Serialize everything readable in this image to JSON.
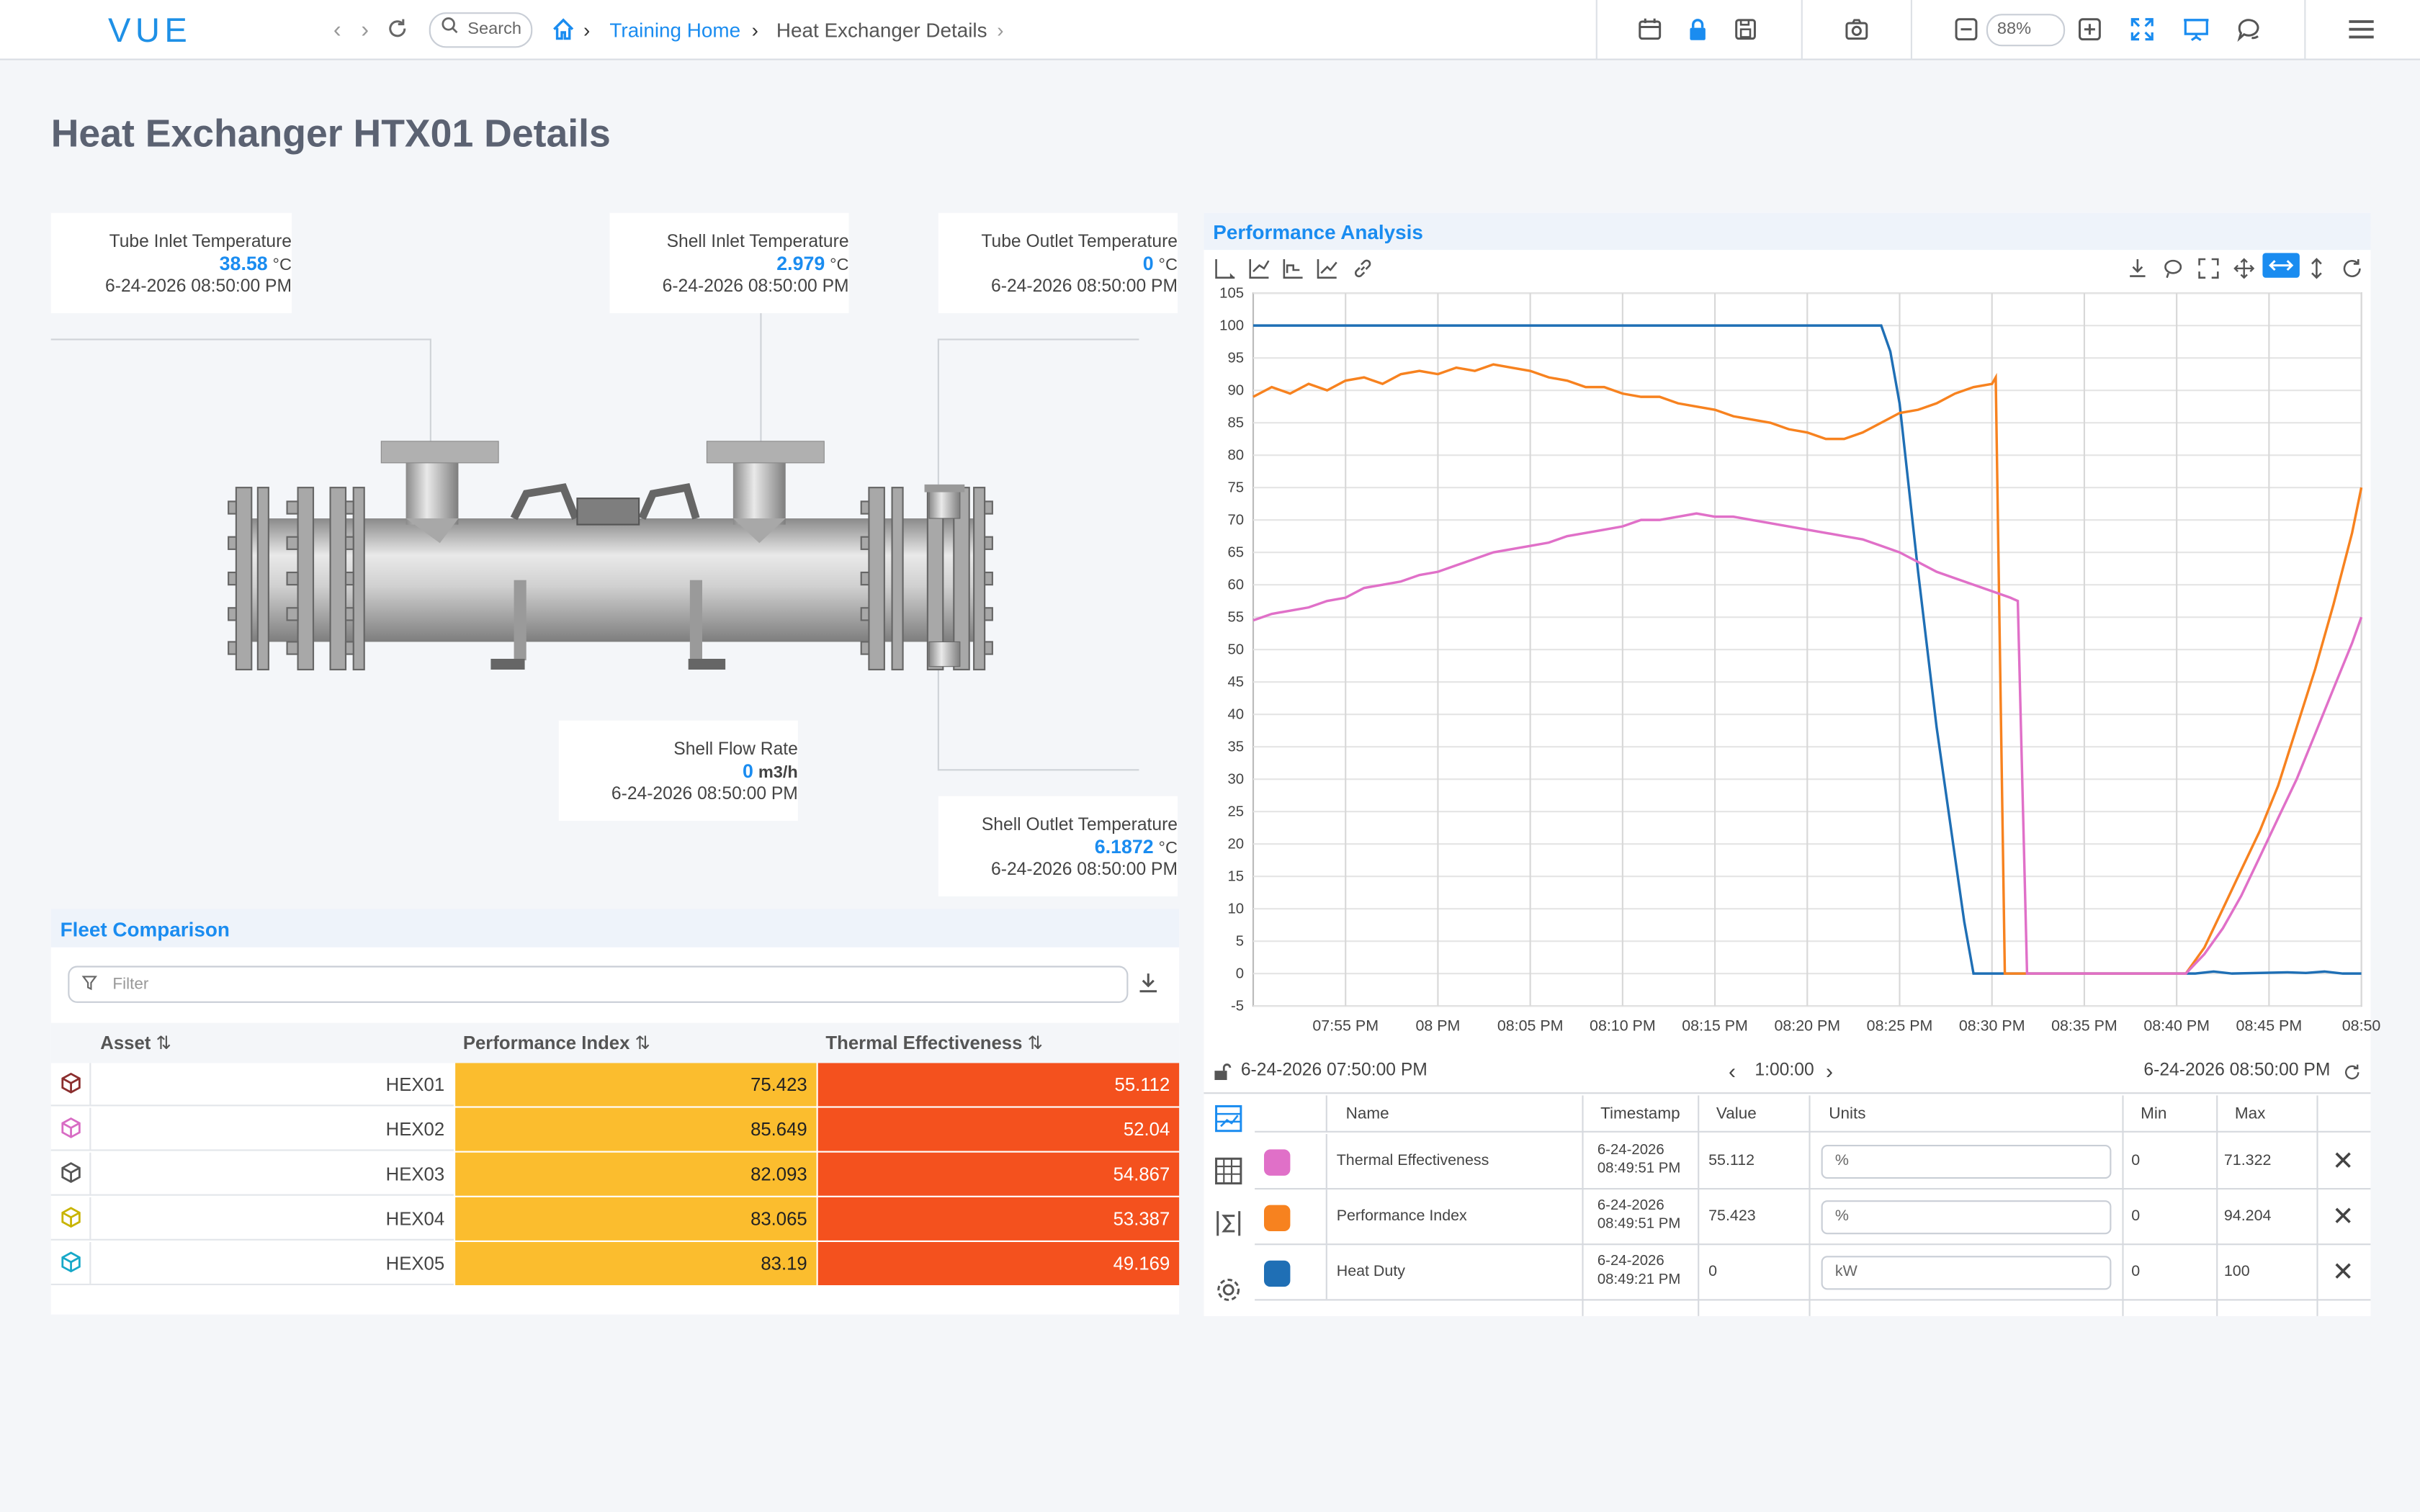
{
  "app": {
    "logo": "VUE"
  },
  "toolbar": {
    "search_placeholder": "Search",
    "breadcrumb": [
      "Training Home",
      "Heat Exchanger Details"
    ],
    "zoom": "88%"
  },
  "page": {
    "title": "Heat Exchanger HTX01 Details"
  },
  "sensors": [
    {
      "name": "Tube Inlet Temperature",
      "value": "38.58",
      "unit": "°C",
      "time": "6-24-2026 08:50:00 PM"
    },
    {
      "name": "Shell Inlet Temperature",
      "value": "2.979",
      "unit": "°C",
      "time": "6-24-2026 08:50:00 PM"
    },
    {
      "name": "Tube Outlet Temperature",
      "value": "0",
      "unit": "°C",
      "time": "6-24-2026 08:50:00 PM"
    },
    {
      "name": "Shell Flow Rate",
      "value": "0",
      "unit": "m3/h",
      "time": "6-24-2026 08:50:00 PM"
    },
    {
      "name": "Shell Outlet Temperature",
      "value": "6.1872",
      "unit": "°C",
      "time": "6-24-2026 08:50:00 PM"
    }
  ],
  "fleet": {
    "title": "Fleet Comparison",
    "filter_placeholder": "Filter",
    "columns": [
      "Asset",
      "Performance Index",
      "Thermal Effectiveness"
    ],
    "rows": [
      {
        "asset": "HEX01",
        "pi": "75.423",
        "te": "55.112",
        "icon_color": "#8b2e2e"
      },
      {
        "asset": "HEX02",
        "pi": "85.649",
        "te": "52.04",
        "icon_color": "#d86cc4"
      },
      {
        "asset": "HEX03",
        "pi": "82.093",
        "te": "54.867",
        "icon_color": "#555555"
      },
      {
        "asset": "HEX04",
        "pi": "83.065",
        "te": "53.387",
        "icon_color": "#c8b400"
      },
      {
        "asset": "HEX05",
        "pi": "83.19",
        "te": "49.169",
        "icon_color": "#17a8c8"
      }
    ],
    "colors": {
      "pi": "#fbbd2e",
      "te": "#f4511e"
    }
  },
  "perf": {
    "title": "Performance Analysis",
    "start": "6-24-2026 07:50:00 PM",
    "end": "6-24-2026 08:50:00 PM",
    "duration": "1:00:00",
    "table_columns": [
      "Name",
      "Timestamp",
      "Value",
      "Units",
      "Min",
      "Max"
    ],
    "rows": [
      {
        "name": "Thermal Effectiveness",
        "color": "#e070c8",
        "ts1": "6-24-2026",
        "ts2": "08:49:51 PM",
        "value": "55.112",
        "units": "%",
        "min": "0",
        "max": "71.322"
      },
      {
        "name": "Performance Index",
        "color": "#f7821f",
        "ts1": "6-24-2026",
        "ts2": "08:49:51 PM",
        "value": "75.423",
        "units": "%",
        "min": "0",
        "max": "94.204"
      },
      {
        "name": "Heat Duty",
        "color": "#1f6fb5",
        "ts1": "6-24-2026",
        "ts2": "08:49:21 PM",
        "value": "0",
        "units": "kW",
        "min": "0",
        "max": "100"
      }
    ]
  },
  "chart_data": {
    "type": "line",
    "ylim": [
      -5,
      105
    ],
    "yticks": [
      105,
      100,
      95,
      90,
      85,
      80,
      75,
      70,
      65,
      60,
      55,
      50,
      45,
      40,
      35,
      30,
      25,
      20,
      15,
      10,
      5,
      0,
      -5
    ],
    "x_labels": [
      "07:55 PM",
      "08 PM",
      "08:05 PM",
      "08:10 PM",
      "08:15 PM",
      "08:20 PM",
      "08:25 PM",
      "08:30 PM",
      "08:35 PM",
      "08:40 PM",
      "08:45 PM",
      "08:50"
    ],
    "x_range_min": [
      0,
      60
    ],
    "grid": true,
    "series": [
      {
        "name": "Heat Duty",
        "color": "#1f6fb5",
        "points": [
          [
            0,
            100
          ],
          [
            34,
            100
          ],
          [
            34.5,
            96
          ],
          [
            35,
            88
          ],
          [
            36,
            62
          ],
          [
            37,
            38
          ],
          [
            38,
            18
          ],
          [
            38.5,
            8
          ],
          [
            39,
            0
          ],
          [
            42,
            0
          ],
          [
            50,
            0
          ],
          [
            51,
            0
          ],
          [
            52,
            0.3
          ],
          [
            53,
            0
          ],
          [
            56,
            0.2
          ],
          [
            57,
            0.1
          ],
          [
            58,
            0.3
          ],
          [
            59,
            0
          ],
          [
            60,
            0
          ]
        ]
      },
      {
        "name": "Performance Index",
        "color": "#f7821f",
        "points": [
          [
            0,
            89
          ],
          [
            1,
            90.5
          ],
          [
            2,
            89.5
          ],
          [
            3,
            91
          ],
          [
            4,
            90
          ],
          [
            5,
            91.5
          ],
          [
            6,
            92
          ],
          [
            7,
            91
          ],
          [
            8,
            92.5
          ],
          [
            9,
            93
          ],
          [
            10,
            92.5
          ],
          [
            11,
            93.5
          ],
          [
            12,
            93
          ],
          [
            13,
            94
          ],
          [
            14,
            93.5
          ],
          [
            15,
            93
          ],
          [
            16,
            92
          ],
          [
            17,
            91.5
          ],
          [
            18,
            90.5
          ],
          [
            19,
            90.5
          ],
          [
            20,
            89.5
          ],
          [
            21,
            89
          ],
          [
            22,
            89
          ],
          [
            23,
            88
          ],
          [
            24,
            87.5
          ],
          [
            25,
            87
          ],
          [
            26,
            86
          ],
          [
            27,
            85.5
          ],
          [
            28,
            85
          ],
          [
            29,
            84
          ],
          [
            30,
            83.5
          ],
          [
            31,
            82.5
          ],
          [
            32,
            82.5
          ],
          [
            33,
            83.5
          ],
          [
            34,
            85
          ],
          [
            35,
            86.5
          ],
          [
            36,
            87
          ],
          [
            37,
            88
          ],
          [
            38,
            89.5
          ],
          [
            39,
            90.5
          ],
          [
            40,
            91
          ],
          [
            40.2,
            92
          ],
          [
            40.7,
            0
          ],
          [
            50,
            0
          ],
          [
            50.5,
            0
          ],
          [
            51.5,
            4
          ],
          [
            52.5,
            10
          ],
          [
            53.5,
            16
          ],
          [
            54.5,
            22
          ],
          [
            55.5,
            29
          ],
          [
            56.5,
            38
          ],
          [
            57.5,
            47
          ],
          [
            58.5,
            57
          ],
          [
            59.5,
            68
          ],
          [
            60,
            75
          ]
        ]
      },
      {
        "name": "Thermal Effectiveness",
        "color": "#e070c8",
        "points": [
          [
            0,
            54.5
          ],
          [
            1,
            55.5
          ],
          [
            2,
            56
          ],
          [
            3,
            56.5
          ],
          [
            4,
            57.5
          ],
          [
            5,
            58
          ],
          [
            6,
            59.5
          ],
          [
            7,
            60
          ],
          [
            8,
            60.5
          ],
          [
            9,
            61.5
          ],
          [
            10,
            62
          ],
          [
            11,
            63
          ],
          [
            12,
            64
          ],
          [
            13,
            65
          ],
          [
            14,
            65.5
          ],
          [
            15,
            66
          ],
          [
            16,
            66.5
          ],
          [
            17,
            67.5
          ],
          [
            18,
            68
          ],
          [
            19,
            68.5
          ],
          [
            20,
            69
          ],
          [
            21,
            70
          ],
          [
            22,
            70
          ],
          [
            23,
            70.5
          ],
          [
            24,
            71
          ],
          [
            25,
            70.5
          ],
          [
            26,
            70.5
          ],
          [
            27,
            70
          ],
          [
            28,
            69.5
          ],
          [
            29,
            69
          ],
          [
            30,
            68.5
          ],
          [
            31,
            68
          ],
          [
            32,
            67.5
          ],
          [
            33,
            67
          ],
          [
            34,
            66
          ],
          [
            35,
            65
          ],
          [
            36,
            63.5
          ],
          [
            37,
            62
          ],
          [
            38,
            61
          ],
          [
            39,
            60
          ],
          [
            40,
            59
          ],
          [
            41,
            58
          ],
          [
            41.4,
            57.5
          ],
          [
            41.9,
            0
          ],
          [
            50,
            0
          ],
          [
            50.5,
            0
          ],
          [
            51.5,
            3
          ],
          [
            52.5,
            7
          ],
          [
            53.5,
            12
          ],
          [
            54.5,
            18
          ],
          [
            55.5,
            24
          ],
          [
            56.5,
            30
          ],
          [
            57.5,
            37
          ],
          [
            58.5,
            44
          ],
          [
            59.5,
            51
          ],
          [
            60,
            55
          ]
        ]
      }
    ]
  }
}
